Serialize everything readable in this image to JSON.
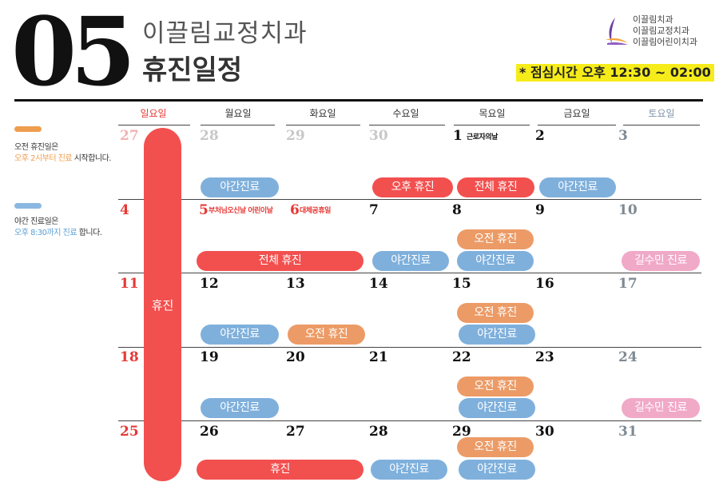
{
  "header": {
    "month": "05",
    "clinic": "이끌림교정치과",
    "title": "휴진일정",
    "lunch": "* 점심시간  오후 12:30 ~ 02:00",
    "logo_names": [
      "이끌림치과",
      "이끌림교정치과",
      "이끌림어린이치과"
    ]
  },
  "legend": {
    "am_off": "오전 휴진일은",
    "am_off_detail_colored": "오후 2시부터 진료",
    "am_off_detail_rest": " 시작합니다.",
    "night": "야간 진료일은",
    "night_detail_colored": "오후 8:30까지 진료",
    "night_detail_rest": " 합니다.",
    "orange": "#ef9d4e",
    "blue": "#8bb8e0"
  },
  "weekdays": [
    "일요일",
    "월요일",
    "화요일",
    "수요일",
    "목요일",
    "금요일",
    "토요일"
  ],
  "week1": {
    "d0": "27",
    "d1": "28",
    "d2": "29",
    "d3": "30",
    "d4": "1",
    "d5": "2",
    "d6": "3",
    "note_d4": "근로자의날"
  },
  "week2": {
    "d0": "4",
    "d1": "5",
    "d2": "6",
    "d3": "7",
    "d4": "8",
    "d5": "9",
    "d6": "10",
    "note_d1": "부처님오신날 어린이날",
    "note_d2": "대체공휴일"
  },
  "week3": {
    "d0": "11",
    "d1": "12",
    "d2": "13",
    "d3": "14",
    "d4": "15",
    "d5": "16",
    "d6": "17"
  },
  "week4": {
    "d0": "18",
    "d1": "19",
    "d2": "20",
    "d3": "21",
    "d4": "22",
    "d5": "23",
    "d6": "24"
  },
  "week5": {
    "d0": "25",
    "d1": "26",
    "d2": "27",
    "d3": "28",
    "d4": "29",
    "d5": "30",
    "d6": "31"
  },
  "sunday_closed": "휴진",
  "events": {
    "night": "야간진료",
    "pm_off": "오후 휴진",
    "full_off": "전체 휴진",
    "am_off": "오전 휴진",
    "off": "휴진",
    "doctor": "길수민 진료"
  },
  "colors": {
    "red": "#f2504f",
    "blue": "#7fb0dc",
    "orange": "#ec9b66",
    "pink": "#f1a9c8",
    "lunch_highlight": "#f6ec1a"
  }
}
